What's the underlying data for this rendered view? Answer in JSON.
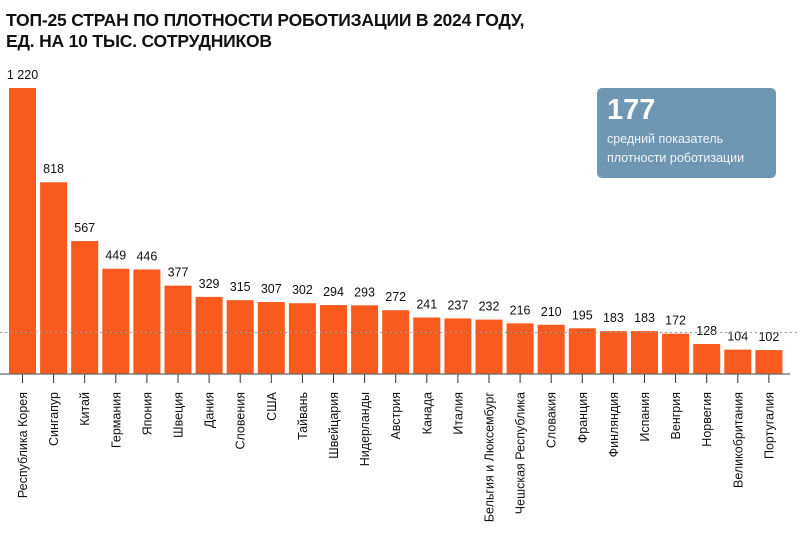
{
  "chart_data": {
    "type": "bar",
    "title": "ТОП-25 СТРАН ПО ПЛОТНОСТИ РОБОТИЗАЦИИ В 2024 ГОДУ,",
    "subtitle": "ЕД. НА 10 ТЫС. СОТРУДНИКОВ",
    "categories": [
      "Республика Корея",
      "Сингапур",
      "Китай",
      "Германия",
      "Япония",
      "Швеция",
      "Дания",
      "Словения",
      "США",
      "Тайвань",
      "Швейцария",
      "Нидерланды",
      "Австрия",
      "Канада",
      "Италия",
      "Бельгия и Люксембург",
      "Чешская Республика",
      "Словакия",
      "Франция",
      "Финляндия",
      "Испания",
      "Венгрия",
      "Норвегия",
      "Великобритания",
      "Португалия"
    ],
    "values": [
      1220,
      818,
      567,
      449,
      446,
      377,
      329,
      315,
      307,
      302,
      294,
      293,
      272,
      241,
      237,
      232,
      216,
      210,
      195,
      183,
      183,
      172,
      128,
      104,
      102
    ],
    "value_labels": [
      "1 220",
      "818",
      "567",
      "449",
      "446",
      "377",
      "329",
      "315",
      "307",
      "302",
      "294",
      "293",
      "272",
      "241",
      "237",
      "232",
      "216",
      "210",
      "195",
      "183",
      "183",
      "172",
      "128",
      "104",
      "102"
    ],
    "ylim": [
      0,
      1220
    ],
    "grid": false,
    "average": {
      "value": 177,
      "label": "средний показатель плотности роботизации",
      "line_style": "dotted"
    },
    "colors": {
      "bar": "#f95a1e",
      "average_box": "#6e97b3"
    }
  },
  "avg_box": {
    "value": "177",
    "line1": "средний показатель",
    "line2": "плотности роботизации"
  }
}
